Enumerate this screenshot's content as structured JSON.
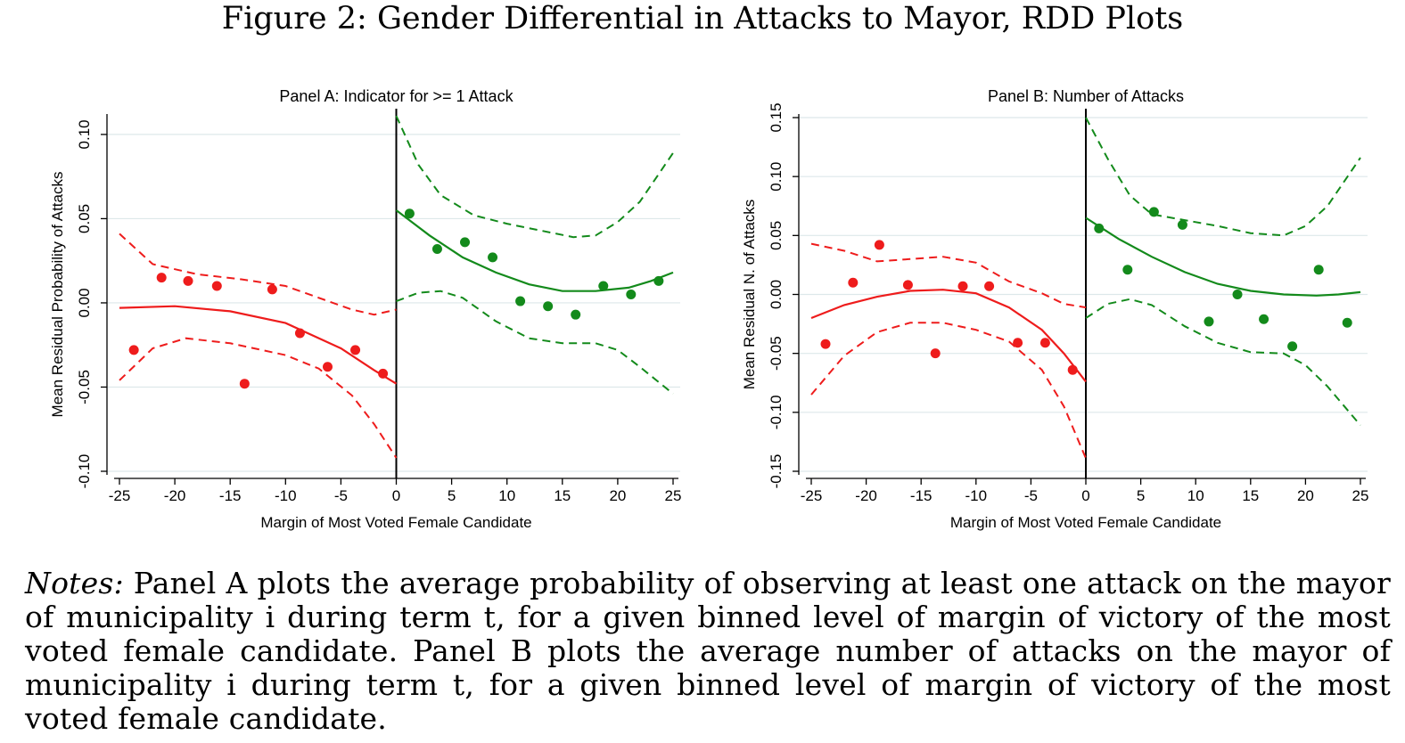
{
  "figure": {
    "title": "Figure 2: Gender Differential in Attacks to Mayor, RDD Plots",
    "notes_label": "Notes:",
    "notes_text": " Panel A plots the average probability of observing at least one attack on the mayor of municipality i during term t, for a given binned level of margin of victory of the most voted female candidate. Panel B plots the average number of attacks on the mayor of municipality i during term t, for a given binned level of margin of victory of the most voted female candidate."
  },
  "colors": {
    "left": "#ee1c1c",
    "right": "#138a1b",
    "grid": "#dde8ea",
    "axis": "#000000"
  },
  "chart_data": [
    {
      "type": "scatter",
      "title": "Panel A: Indicator for >= 1 Attack",
      "xlabel": "Margin of Most Voted Female Candidate",
      "ylabel": "Mean Residual Probability of Attacks",
      "xlim": [
        -25,
        25
      ],
      "ylim": [
        -0.1,
        0.11
      ],
      "xticks": [
        -25,
        -20,
        -15,
        -10,
        -5,
        0,
        5,
        10,
        15,
        20,
        25
      ],
      "yticks": [
        -0.1,
        -0.05,
        0.0,
        0.05,
        0.1
      ],
      "ytick_labels": [
        "-0.10",
        "-0.05",
        "0.00",
        "0.05",
        "0.10"
      ],
      "grid": true,
      "cutoff": 0,
      "series": [
        {
          "side": "left",
          "points": [
            [
              -23.7,
              -0.028
            ],
            [
              -21.2,
              0.015
            ],
            [
              -18.8,
              0.013
            ],
            [
              -16.2,
              0.01
            ],
            [
              -13.7,
              -0.048
            ],
            [
              -11.2,
              0.008
            ],
            [
              -8.7,
              -0.018
            ],
            [
              -6.2,
              -0.038
            ],
            [
              -3.7,
              -0.028
            ],
            [
              -1.2,
              -0.042
            ]
          ],
          "fit": [
            [
              -25,
              -0.003
            ],
            [
              -20,
              -0.002
            ],
            [
              -15,
              -0.005
            ],
            [
              -10,
              -0.012
            ],
            [
              -5,
              -0.027
            ],
            [
              -2,
              -0.04
            ],
            [
              0,
              -0.048
            ]
          ],
          "ci_upper": [
            [
              -25,
              0.041
            ],
            [
              -22,
              0.023
            ],
            [
              -18,
              0.017
            ],
            [
              -14,
              0.014
            ],
            [
              -10,
              0.01
            ],
            [
              -7,
              0.003
            ],
            [
              -4,
              -0.004
            ],
            [
              -2,
              -0.007
            ],
            [
              0,
              -0.004
            ]
          ],
          "ci_lower": [
            [
              -25,
              -0.046
            ],
            [
              -22,
              -0.027
            ],
            [
              -19,
              -0.021
            ],
            [
              -15,
              -0.024
            ],
            [
              -10,
              -0.031
            ],
            [
              -7,
              -0.039
            ],
            [
              -4,
              -0.055
            ],
            [
              -2,
              -0.072
            ],
            [
              0,
              -0.092
            ]
          ]
        },
        {
          "side": "right",
          "points": [
            [
              1.2,
              0.053
            ],
            [
              3.7,
              0.032
            ],
            [
              6.2,
              0.036
            ],
            [
              8.7,
              0.027
            ],
            [
              11.2,
              0.001
            ],
            [
              13.7,
              -0.002
            ],
            [
              16.2,
              -0.007
            ],
            [
              18.7,
              0.01
            ],
            [
              21.2,
              0.005
            ],
            [
              23.7,
              0.013
            ]
          ],
          "fit": [
            [
              0,
              0.055
            ],
            [
              3,
              0.04
            ],
            [
              6,
              0.027
            ],
            [
              9,
              0.018
            ],
            [
              12,
              0.011
            ],
            [
              15,
              0.007
            ],
            [
              18,
              0.007
            ],
            [
              21,
              0.009
            ],
            [
              23,
              0.013
            ],
            [
              25,
              0.018
            ]
          ],
          "ci_upper": [
            [
              0,
              0.111
            ],
            [
              2,
              0.082
            ],
            [
              4,
              0.064
            ],
            [
              7,
              0.052
            ],
            [
              10,
              0.047
            ],
            [
              13,
              0.043
            ],
            [
              16,
              0.039
            ],
            [
              18,
              0.04
            ],
            [
              20,
              0.048
            ],
            [
              22,
              0.06
            ],
            [
              25,
              0.089
            ]
          ],
          "ci_lower": [
            [
              0,
              0.001
            ],
            [
              2,
              0.006
            ],
            [
              4,
              0.007
            ],
            [
              6,
              0.003
            ],
            [
              9,
              -0.011
            ],
            [
              12,
              -0.021
            ],
            [
              15,
              -0.024
            ],
            [
              18,
              -0.024
            ],
            [
              20,
              -0.028
            ],
            [
              22,
              -0.038
            ],
            [
              25,
              -0.054
            ]
          ]
        }
      ]
    },
    {
      "type": "scatter",
      "title": "Panel B: Number of Attacks",
      "xlabel": "Margin of Most Voted Female Candidate",
      "ylabel": "Mean Residual N. of Attacks",
      "xlim": [
        -25,
        25
      ],
      "ylim": [
        -0.15,
        0.15
      ],
      "xticks": [
        -25,
        -20,
        -15,
        -10,
        -5,
        0,
        5,
        10,
        15,
        20,
        25
      ],
      "yticks": [
        -0.15,
        -0.1,
        -0.05,
        0.0,
        0.05,
        0.1,
        0.15
      ],
      "ytick_labels": [
        "-0.15",
        "-0.10",
        "-0.05",
        "0.00",
        "0.05",
        "0.10",
        "0.15"
      ],
      "grid": true,
      "cutoff": 0,
      "series": [
        {
          "side": "left",
          "points": [
            [
              -23.7,
              -0.042
            ],
            [
              -21.2,
              0.01
            ],
            [
              -18.8,
              0.042
            ],
            [
              -16.2,
              0.008
            ],
            [
              -13.7,
              -0.05
            ],
            [
              -11.2,
              0.007
            ],
            [
              -8.8,
              0.007
            ],
            [
              -6.2,
              -0.041
            ],
            [
              -3.7,
              -0.041
            ],
            [
              -1.2,
              -0.064
            ]
          ],
          "fit": [
            [
              -25,
              -0.02
            ],
            [
              -22,
              -0.009
            ],
            [
              -19,
              -0.002
            ],
            [
              -16,
              0.003
            ],
            [
              -13,
              0.004
            ],
            [
              -10,
              0.001
            ],
            [
              -7,
              -0.011
            ],
            [
              -4,
              -0.03
            ],
            [
              -2,
              -0.05
            ],
            [
              0,
              -0.074
            ]
          ],
          "ci_upper": [
            [
              -25,
              0.043
            ],
            [
              -22,
              0.037
            ],
            [
              -19,
              0.028
            ],
            [
              -16,
              0.03
            ],
            [
              -13,
              0.032
            ],
            [
              -10,
              0.027
            ],
            [
              -7,
              0.011
            ],
            [
              -4,
              0.001
            ],
            [
              -2,
              -0.008
            ],
            [
              0,
              -0.011
            ]
          ],
          "ci_lower": [
            [
              -25,
              -0.085
            ],
            [
              -22,
              -0.052
            ],
            [
              -19,
              -0.032
            ],
            [
              -16,
              -0.024
            ],
            [
              -13,
              -0.024
            ],
            [
              -10,
              -0.03
            ],
            [
              -7,
              -0.04
            ],
            [
              -4,
              -0.064
            ],
            [
              -2,
              -0.095
            ],
            [
              0,
              -0.139
            ]
          ]
        },
        {
          "side": "right",
          "points": [
            [
              1.2,
              0.056
            ],
            [
              3.8,
              0.021
            ],
            [
              6.2,
              0.07
            ],
            [
              8.8,
              0.059
            ],
            [
              11.2,
              -0.023
            ],
            [
              13.8,
              0.0
            ],
            [
              16.2,
              -0.021
            ],
            [
              18.8,
              -0.044
            ],
            [
              21.2,
              0.021
            ],
            [
              23.8,
              -0.024
            ]
          ],
          "fit": [
            [
              0,
              0.065
            ],
            [
              3,
              0.047
            ],
            [
              6,
              0.032
            ],
            [
              9,
              0.019
            ],
            [
              12,
              0.009
            ],
            [
              15,
              0.003
            ],
            [
              18,
              0.0
            ],
            [
              21,
              -0.001
            ],
            [
              23,
              0.0
            ],
            [
              25,
              0.002
            ]
          ],
          "ci_upper": [
            [
              0,
              0.15
            ],
            [
              2,
              0.115
            ],
            [
              4,
              0.084
            ],
            [
              6,
              0.068
            ],
            [
              9,
              0.063
            ],
            [
              12,
              0.058
            ],
            [
              15,
              0.052
            ],
            [
              18,
              0.05
            ],
            [
              20,
              0.058
            ],
            [
              22,
              0.075
            ],
            [
              25,
              0.116
            ]
          ],
          "ci_lower": [
            [
              0,
              -0.02
            ],
            [
              2,
              -0.008
            ],
            [
              4,
              -0.004
            ],
            [
              6,
              -0.009
            ],
            [
              9,
              -0.027
            ],
            [
              12,
              -0.041
            ],
            [
              15,
              -0.049
            ],
            [
              18,
              -0.05
            ],
            [
              20,
              -0.06
            ],
            [
              22,
              -0.078
            ],
            [
              25,
              -0.111
            ]
          ]
        }
      ]
    }
  ]
}
